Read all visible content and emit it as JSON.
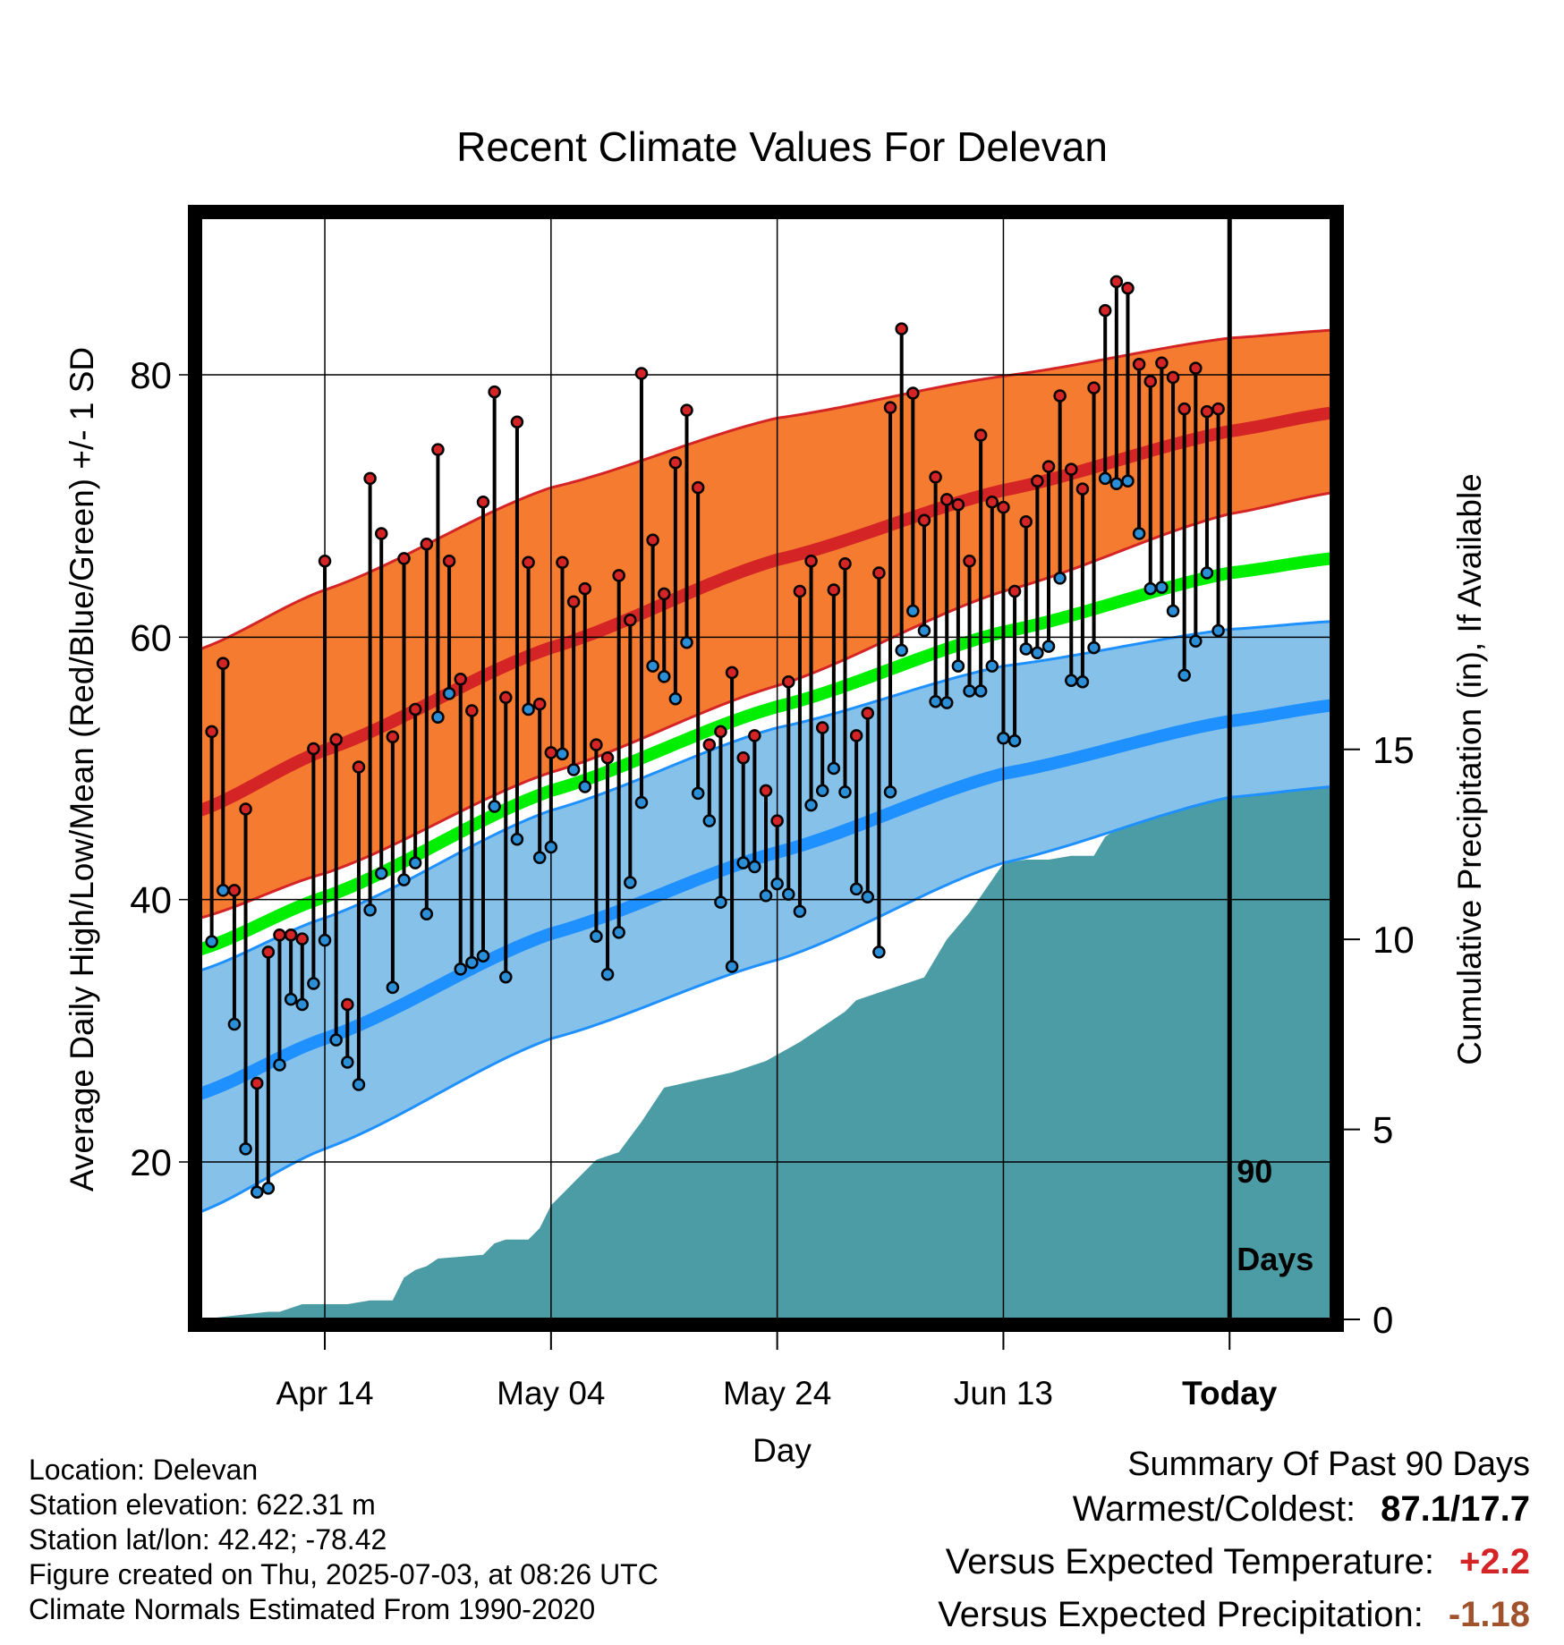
{
  "chart_data": {
    "type": "line",
    "title": "Recent Climate Values For Delevan",
    "xlabel": "Day",
    "ylabel": "Average Daily High/Low/Mean (Red/Blue/Green) +/- 1 SD",
    "y2label": "Cumulative Precipitation (in), If Available",
    "x_range_days": [
      -91,
      9
    ],
    "ylim": [
      8,
      92
    ],
    "y2lim": [
      0,
      29
    ],
    "x_ticks": [
      {
        "day": -80,
        "label": "Apr 14"
      },
      {
        "day": -60,
        "label": "May 04"
      },
      {
        "day": -40,
        "label": "May 24"
      },
      {
        "day": -20,
        "label": "Jun 13"
      },
      {
        "day": 0,
        "label": "Today"
      }
    ],
    "y_ticks": [
      20,
      40,
      60,
      80
    ],
    "y2_ticks": [
      0,
      5,
      10,
      15
    ],
    "today_marker": {
      "day": 0,
      "label_line1": "90",
      "label_line2": "Days"
    },
    "normals": {
      "high_mean": [
        [
          -91,
          46.8
        ],
        [
          -80,
          51.4
        ],
        [
          -60,
          59.2
        ],
        [
          -40,
          65.9
        ],
        [
          -20,
          71.2
        ],
        [
          0,
          75.7
        ],
        [
          9,
          77.1
        ]
      ],
      "high_upper": [
        [
          -91,
          59.1
        ],
        [
          -80,
          63.6
        ],
        [
          -60,
          71.4
        ],
        [
          -40,
          76.7
        ],
        [
          -20,
          79.9
        ],
        [
          0,
          82.8
        ],
        [
          9,
          83.4
        ]
      ],
      "high_lower": [
        [
          -91,
          38.6
        ],
        [
          -80,
          42.0
        ],
        [
          -60,
          49.7
        ],
        [
          -40,
          56.3
        ],
        [
          -20,
          63.5
        ],
        [
          0,
          69.4
        ],
        [
          9,
          71.0
        ]
      ],
      "mean": [
        [
          -91,
          36.2
        ],
        [
          -80,
          40.2
        ],
        [
          -60,
          48.3
        ],
        [
          -40,
          54.7
        ],
        [
          -20,
          60.4
        ],
        [
          0,
          64.9
        ],
        [
          9,
          66.0
        ]
      ],
      "low_mean": [
        [
          -91,
          25.2
        ],
        [
          -80,
          29.4
        ],
        [
          -60,
          37.4
        ],
        [
          -40,
          43.6
        ],
        [
          -20,
          49.6
        ],
        [
          0,
          53.6
        ],
        [
          9,
          54.8
        ]
      ],
      "low_upper": [
        [
          -91,
          34.6
        ],
        [
          -80,
          38.6
        ],
        [
          -60,
          46.8
        ],
        [
          -40,
          53.1
        ],
        [
          -20,
          57.8
        ],
        [
          0,
          60.6
        ],
        [
          9,
          61.2
        ]
      ],
      "low_lower": [
        [
          -91,
          16.2
        ],
        [
          -80,
          21.0
        ],
        [
          -60,
          29.4
        ],
        [
          -40,
          35.4
        ],
        [
          -20,
          42.8
        ],
        [
          0,
          47.8
        ],
        [
          9,
          48.6
        ]
      ]
    },
    "daily_high": [
      52.8,
      58.0,
      40.7,
      46.9,
      26.0,
      36.0,
      37.3,
      37.3,
      37.0,
      51.5,
      65.8,
      52.2,
      32.0,
      50.1,
      72.1,
      67.9,
      52.4,
      66.0,
      54.5,
      67.1,
      74.3,
      65.8,
      56.8,
      54.4,
      70.3,
      78.7,
      55.4,
      76.4,
      65.7,
      54.9,
      51.2,
      65.7,
      62.7,
      63.7,
      51.8,
      50.8,
      64.7,
      61.3,
      80.1,
      67.4,
      63.3,
      73.3,
      77.3,
      71.4,
      51.8,
      52.8,
      57.3,
      50.8,
      52.5,
      48.3,
      46.0,
      56.6,
      63.5,
      65.8,
      53.1,
      63.6,
      65.6,
      52.5,
      54.2,
      64.9,
      77.5,
      83.5,
      78.6,
      68.9,
      72.2,
      70.5,
      70.1,
      65.8,
      75.4,
      70.3,
      69.9,
      63.5,
      68.8,
      71.9,
      73.0,
      78.4,
      72.8,
      71.3,
      79.0,
      84.9,
      87.1,
      86.6,
      80.8,
      79.5,
      80.9,
      79.8,
      77.4,
      80.5,
      77.2,
      77.4
    ],
    "daily_low": [
      36.8,
      40.7,
      30.5,
      21.0,
      17.7,
      18.0,
      27.4,
      32.4,
      32.0,
      33.6,
      36.9,
      29.3,
      27.6,
      25.9,
      39.2,
      42.0,
      33.3,
      41.5,
      42.8,
      38.9,
      53.9,
      55.7,
      34.7,
      35.2,
      35.7,
      47.1,
      34.1,
      44.6,
      54.5,
      43.2,
      44.0,
      51.1,
      49.9,
      48.6,
      37.2,
      34.3,
      37.5,
      41.3,
      47.4,
      57.8,
      57.0,
      55.3,
      59.6,
      48.1,
      46.0,
      39.8,
      34.9,
      42.8,
      42.5,
      40.3,
      41.2,
      40.4,
      39.1,
      47.2,
      48.3,
      50.0,
      48.2,
      40.8,
      40.2,
      36.0,
      48.2,
      59.0,
      62.0,
      60.5,
      55.1,
      55.0,
      57.8,
      55.9,
      55.9,
      57.8,
      52.3,
      52.1,
      59.1,
      58.8,
      59.3,
      64.5,
      56.7,
      56.6,
      59.2,
      72.1,
      71.7,
      71.9,
      67.9,
      63.7,
      63.8,
      62.0,
      57.1,
      59.7,
      64.9,
      60.5
    ],
    "cumulative_precip": [
      [
        -91,
        0.0
      ],
      [
        -85,
        0.2
      ],
      [
        -84,
        0.2
      ],
      [
        -83,
        0.3
      ],
      [
        -82,
        0.4
      ],
      [
        -78,
        0.4
      ],
      [
        -76,
        0.5
      ],
      [
        -74,
        0.5
      ],
      [
        -73,
        1.1
      ],
      [
        -72,
        1.3
      ],
      [
        -71,
        1.4
      ],
      [
        -70,
        1.6
      ],
      [
        -66,
        1.7
      ],
      [
        -65,
        2.0
      ],
      [
        -64,
        2.1
      ],
      [
        -62,
        2.1
      ],
      [
        -61,
        2.4
      ],
      [
        -60,
        3.0
      ],
      [
        -58,
        3.6
      ],
      [
        -56,
        4.2
      ],
      [
        -54,
        4.4
      ],
      [
        -52,
        5.2
      ],
      [
        -50,
        6.1
      ],
      [
        -44,
        6.5
      ],
      [
        -41,
        6.8
      ],
      [
        -38,
        7.3
      ],
      [
        -36,
        7.7
      ],
      [
        -34,
        8.1
      ],
      [
        -33,
        8.4
      ],
      [
        -31,
        8.6
      ],
      [
        -27,
        9.0
      ],
      [
        -25,
        10.0
      ],
      [
        -23,
        10.7
      ],
      [
        -20,
        12.0
      ],
      [
        -18,
        12.1
      ],
      [
        -16,
        12.1
      ],
      [
        -14,
        12.2
      ],
      [
        -12,
        12.2
      ],
      [
        -11,
        12.7
      ],
      [
        -10,
        12.9
      ],
      [
        -9,
        13.6
      ],
      [
        -8,
        13.6
      ],
      [
        -5,
        13.7
      ],
      [
        -3,
        14.3
      ],
      [
        -2,
        14.4
      ],
      [
        -1,
        14.6
      ],
      [
        0,
        14.7
      ],
      [
        9,
        14.8
      ]
    ]
  },
  "location": {
    "label": "Location: Delevan",
    "elevation": "Station elevation: 622.31 m",
    "latlon": "Station lat/lon: 42.42; -78.42",
    "created": "Figure created on Thu, 2025-07-03, at 08:26 UTC",
    "normals": "Climate Normals Estimated From 1990-2020"
  },
  "summary": {
    "title": "Summary Of Past 90 Days",
    "warm_cold_label": "Warmest/Coldest:",
    "warm_cold_value": "87.1/17.7",
    "temp_label": "Versus Expected Temperature:",
    "temp_value": "+2.2",
    "precip_label": "Versus Expected Precipitation:",
    "precip_value": "-1.18"
  },
  "colors": {
    "high_band": "#f47b30",
    "high_line": "#d42426",
    "mean_line": "#00ee00",
    "low_band": "#85c1e9",
    "low_line": "#1e90ff",
    "precip": "#4b9ca4",
    "high_dot": "#d42426",
    "low_dot": "#2b8fd8",
    "temp_value": "#d42426",
    "precip_value": "#a0522d"
  }
}
